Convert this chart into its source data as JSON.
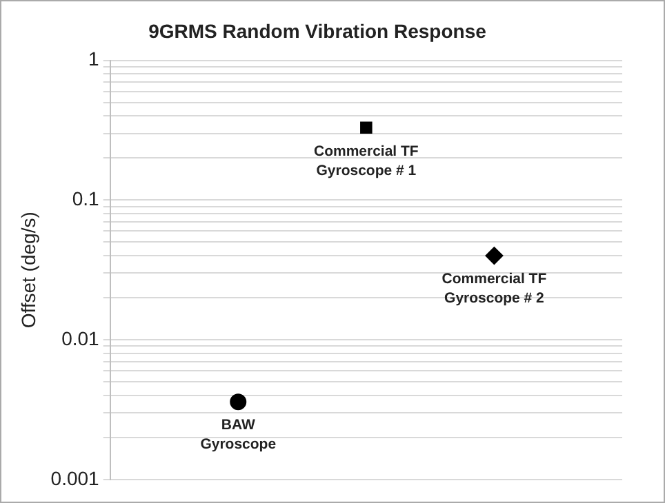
{
  "chart_data": {
    "type": "scatter",
    "title": "9GRMS Random Vibration Response",
    "ylabel": "Offset (deg/s)",
    "categories": [
      null,
      null,
      null,
      null,
      null
    ],
    "series": [
      {
        "name": "BAW Gyroscope",
        "color": "#000000",
        "marker": "circle",
        "values": [
          null,
          0.0036,
          null,
          null,
          null
        ]
      },
      {
        "name": "Commercial TF Gyroscope # 1",
        "color": "#000000",
        "marker": "square",
        "values": [
          null,
          null,
          0.33,
          null,
          null
        ]
      },
      {
        "name": "Commercial TF Gyroscope # 2",
        "color": "#000000",
        "marker": "diamond",
        "values": [
          null,
          null,
          null,
          0.04,
          null
        ]
      }
    ],
    "log": "y",
    "ylim": [
      0.001,
      1
    ],
    "yticks": [
      0.001,
      {
        "value": 0.002,
        "label": null
      },
      {
        "value": 0.003,
        "label": null
      },
      {
        "value": 0.004,
        "label": null
      },
      {
        "value": 0.005,
        "label": null
      },
      {
        "value": 0.006,
        "label": null
      },
      {
        "value": 0.007,
        "label": null
      },
      {
        "value": 0.008,
        "label": null
      },
      {
        "value": 0.009,
        "label": null
      },
      0.01,
      {
        "value": 0.02,
        "label": null
      },
      {
        "value": 0.03,
        "label": null
      },
      {
        "value": 0.04,
        "label": null
      },
      {
        "value": 0.05,
        "label": null
      },
      {
        "value": 0.06,
        "label": null
      },
      {
        "value": 0.07,
        "label": null
      },
      {
        "value": 0.08,
        "label": null
      },
      {
        "value": 0.09,
        "label": null
      },
      0.1,
      {
        "value": 0.2,
        "label": null
      },
      {
        "value": 0.3,
        "label": null
      },
      {
        "value": 0.4,
        "label": null
      },
      {
        "value": 0.5,
        "label": null
      },
      {
        "value": 0.6,
        "label": null
      },
      {
        "value": 0.7,
        "label": null
      },
      {
        "value": 0.8,
        "label": null
      },
      {
        "value": 0.9,
        "label": null
      },
      1
    ],
    "grid": "y",
    "legend": false,
    "tick_labels": "y"
  }
}
